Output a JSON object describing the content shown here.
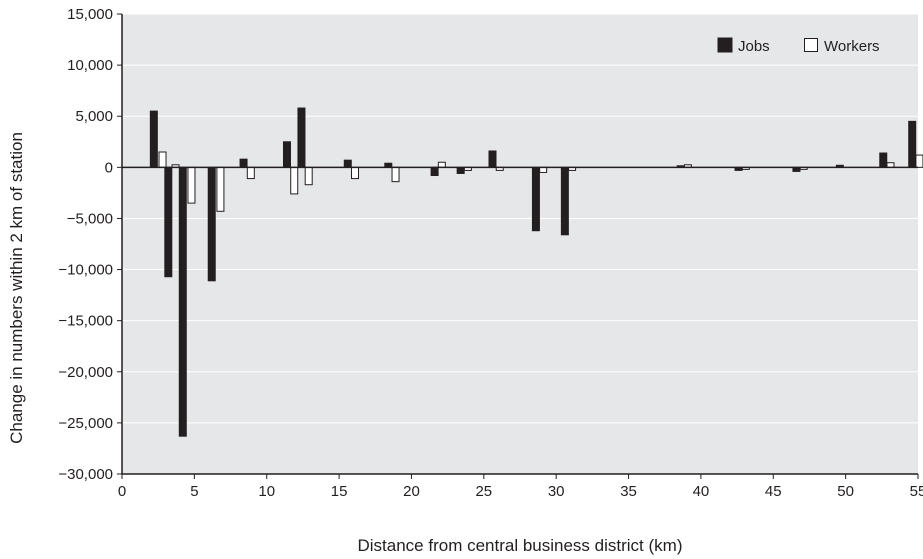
{
  "chart_data": {
    "type": "bar",
    "xlabel": "Distance from central business district (km)",
    "ylabel": "Change in numbers within 2 km of station",
    "xlim": [
      0,
      55
    ],
    "ylim": [
      -30000,
      15000
    ],
    "x_ticks": [
      0,
      5,
      10,
      15,
      20,
      25,
      30,
      35,
      40,
      45,
      50,
      55
    ],
    "x_tick_labels": [
      "0",
      "5",
      "10",
      "15",
      "20",
      "25",
      "30",
      "35",
      "40",
      "45",
      "50",
      "55"
    ],
    "y_ticks": [
      15000,
      10000,
      5000,
      0,
      -5000,
      -10000,
      -15000,
      -20000,
      -25000,
      -30000
    ],
    "y_tick_labels": [
      "15,000",
      "10,000",
      "5,000",
      "0",
      "−5,000",
      "−10,000",
      "−15,000",
      "−20,000",
      "−25,000",
      "−30,000"
    ],
    "grid": "horizontal",
    "legend_position": "top-right",
    "colors": {
      "background": "#e6e7e8",
      "jobs": "#231f20",
      "workers": "#ffffff",
      "grid": "#ffffff",
      "axis": "#231f20"
    },
    "series": [
      {
        "name": "Jobs",
        "points": [
          {
            "x": 2.2,
            "y": 5500
          },
          {
            "x": 3.2,
            "y": -10700
          },
          {
            "x": 4.2,
            "y": -26300
          },
          {
            "x": 6.2,
            "y": -11100
          },
          {
            "x": 8.4,
            "y": 800
          },
          {
            "x": 11.4,
            "y": 2500
          },
          {
            "x": 12.4,
            "y": 5800
          },
          {
            "x": 15.6,
            "y": 700
          },
          {
            "x": 18.4,
            "y": 400
          },
          {
            "x": 21.6,
            "y": -800
          },
          {
            "x": 23.4,
            "y": -600
          },
          {
            "x": 25.6,
            "y": 1600
          },
          {
            "x": 28.6,
            "y": -6200
          },
          {
            "x": 30.6,
            "y": -6600
          },
          {
            "x": 38.6,
            "y": 150
          },
          {
            "x": 42.6,
            "y": -300
          },
          {
            "x": 46.6,
            "y": -400
          },
          {
            "x": 49.6,
            "y": 200
          },
          {
            "x": 52.6,
            "y": 1400
          },
          {
            "x": 54.6,
            "y": 4500
          }
        ]
      },
      {
        "name": "Workers",
        "points": [
          {
            "x": 2.8,
            "y": 1500
          },
          {
            "x": 3.7,
            "y": 250
          },
          {
            "x": 4.8,
            "y": -3500
          },
          {
            "x": 6.8,
            "y": -4300
          },
          {
            "x": 8.9,
            "y": -1100
          },
          {
            "x": 11.9,
            "y": -2600
          },
          {
            "x": 12.9,
            "y": -1700
          },
          {
            "x": 16.1,
            "y": -1100
          },
          {
            "x": 18.9,
            "y": -1400
          },
          {
            "x": 22.1,
            "y": 500
          },
          {
            "x": 23.9,
            "y": -300
          },
          {
            "x": 26.1,
            "y": -300
          },
          {
            "x": 29.1,
            "y": -500
          },
          {
            "x": 31.1,
            "y": -300
          },
          {
            "x": 39.1,
            "y": 250
          },
          {
            "x": 43.1,
            "y": -200
          },
          {
            "x": 47.1,
            "y": -200
          },
          {
            "x": 53.1,
            "y": 450
          },
          {
            "x": 55.1,
            "y": 1200
          }
        ]
      }
    ]
  }
}
